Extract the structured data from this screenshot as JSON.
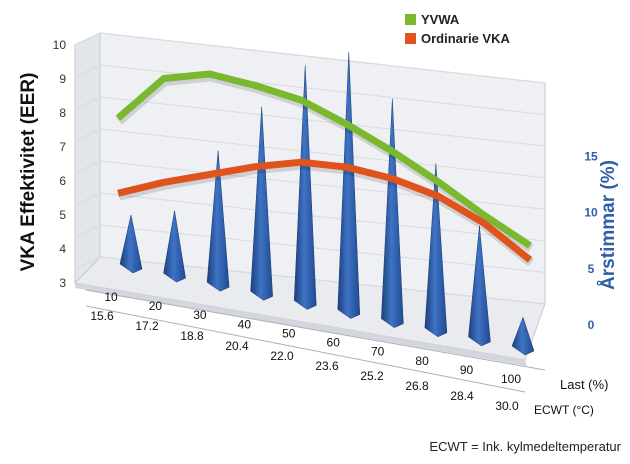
{
  "chart_data": {
    "type": "line",
    "projection": "3d",
    "legend_position": "top-right",
    "ylabel_left": "VKA Effektivitet (EER)",
    "ylabel_right": "Årstimmar (%)",
    "y_left_ticks": [
      "3",
      "4",
      "5",
      "6",
      "7",
      "8",
      "9",
      "10"
    ],
    "y_left_range": [
      3,
      10
    ],
    "y_right_ticks": [
      "0",
      "5",
      "10",
      "15"
    ],
    "y_right_range": [
      0,
      20
    ],
    "x_ticks_load": [
      "10",
      "20",
      "30",
      "40",
      "50",
      "60",
      "70",
      "80",
      "90",
      "100"
    ],
    "x_ticks_ecwt": [
      "15.6",
      "17.2",
      "18.8",
      "20.4",
      "22.0",
      "23.6",
      "25.2",
      "26.8",
      "28.4",
      "30.0"
    ],
    "x_label_load": "Last (%)",
    "x_label_ecwt": "ECWT (°C)",
    "footnote": "ECWT = Ink. kylmedeltemperatur",
    "series": [
      {
        "name": "YVWA",
        "color": "#7ab82e",
        "axis": "left",
        "values": [
          7.4,
          8.8,
          9.1,
          8.9,
          8.6,
          8.0,
          7.3,
          6.5,
          5.6,
          4.8
        ]
      },
      {
        "name": "Ordinarie VKA",
        "color": "#e0531c",
        "axis": "left",
        "values": [
          5.3,
          5.8,
          6.2,
          6.6,
          6.9,
          6.9,
          6.7,
          6.3,
          5.6,
          4.6
        ]
      },
      {
        "name": "Årstimmar",
        "color": "#2f5ea8",
        "axis": "right",
        "mark": "cone",
        "values": [
          3.5,
          4.5,
          9.5,
          13.5,
          17.5,
          19.5,
          17.0,
          13.0,
          9.0,
          2.5
        ]
      }
    ]
  }
}
